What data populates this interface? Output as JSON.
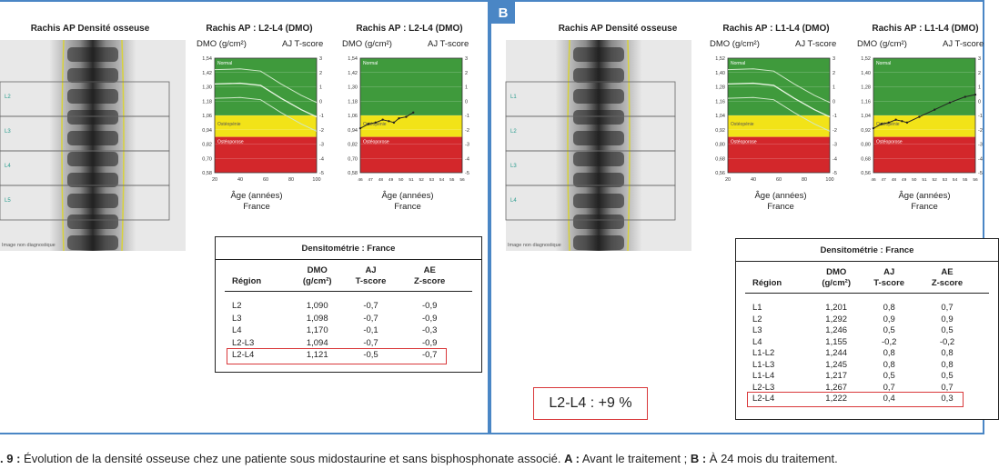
{
  "panel_a": {
    "letter": "",
    "xray_title": "Rachis AP Densité osseuse",
    "vertebra_labels": [
      "L2",
      "L3",
      "L4",
      "L5"
    ],
    "image_note": "Image non diagnostique",
    "graph_left": {
      "title": "Rachis AP : L2-L4 (DMO)",
      "y_label": "DMO (g/cm²)",
      "y2_label": "AJ T-score",
      "y_ticks": [
        "1,54",
        "1,42",
        "1,30",
        "1,18",
        "1,06",
        "0,94",
        "0,82",
        "0,70",
        "0,58"
      ],
      "t_ticks": [
        "3",
        "2",
        "1",
        "0",
        "-1",
        "-2",
        "-3",
        "-4",
        "-5"
      ],
      "x_ticks": [
        "20",
        "40",
        "60",
        "80",
        "100"
      ],
      "zones": [
        "Normal",
        "Ostéopénie",
        "Ostéoporose"
      ],
      "x_label": "Âge (années)",
      "x_sub": "France"
    },
    "graph_right": {
      "title": "Rachis AP : L2-L4 (DMO)",
      "y_label": "DMO (g/cm²)",
      "y2_label": "AJ T-score",
      "y_ticks": [
        "1,54",
        "1,42",
        "1,30",
        "1,18",
        "1,06",
        "0,94",
        "0,82",
        "0,70",
        "0,58"
      ],
      "t_ticks": [
        "3",
        "2",
        "1",
        "0",
        "-1",
        "-2",
        "-3",
        "-4",
        "-5"
      ],
      "x_ticks": [
        "46",
        "47",
        "48",
        "49",
        "50",
        "51",
        "52",
        "53",
        "54",
        "55",
        "56"
      ],
      "zones": [
        "Normal",
        "Ostéopénie",
        "Ostéoporose"
      ],
      "x_label": "Âge (années)",
      "x_sub": "France"
    },
    "table": {
      "title": "Densitométrie : France",
      "headers": {
        "region": "Région",
        "dmo": "DMO",
        "dmo_unit": "(g/cm²)",
        "aj": "AJ",
        "aj_sub": "T-score",
        "ae": "AE",
        "ae_sub": "Z-score"
      },
      "rows": [
        {
          "region": "L2",
          "dmo": "1,090",
          "t": "-0,7",
          "z": "-0,9"
        },
        {
          "region": "L3",
          "dmo": "1,098",
          "t": "-0,7",
          "z": "-0,9"
        },
        {
          "region": "L4",
          "dmo": "1,170",
          "t": "-0,1",
          "z": "-0,3"
        },
        {
          "region": "L2-L3",
          "dmo": "1,094",
          "t": "-0,7",
          "z": "-0,9"
        },
        {
          "region": "L2-L4",
          "dmo": "1,121",
          "t": "-0,5",
          "z": "-0,7"
        }
      ]
    }
  },
  "panel_b": {
    "letter": "B",
    "xray_title": "Rachis AP Densité osseuse",
    "vertebra_labels": [
      "L1",
      "L2",
      "L3",
      "L4"
    ],
    "image_note": "Image non diagnostique",
    "graph_left": {
      "title": "Rachis AP : L1-L4 (DMO)",
      "y_label": "DMO (g/cm²)",
      "y2_label": "AJ T-score",
      "y_ticks": [
        "1,52",
        "1,40",
        "1,28",
        "1,16",
        "1,04",
        "0,92",
        "0,80",
        "0,68",
        "0,56"
      ],
      "t_ticks": [
        "3",
        "2",
        "1",
        "0",
        "-1",
        "-2",
        "-3",
        "-4",
        "-5"
      ],
      "x_ticks": [
        "20",
        "40",
        "60",
        "80",
        "100"
      ],
      "zones": [
        "Normal",
        "Ostéopénie",
        "Ostéoporose"
      ],
      "x_label": "Âge (années)",
      "x_sub": "France"
    },
    "graph_right": {
      "title": "Rachis AP : L1-L4 (DMO)",
      "y_label": "DMO (g/cm²)",
      "y2_label": "AJ T-score",
      "y_ticks": [
        "1,52",
        "1,40",
        "1,28",
        "1,16",
        "1,04",
        "0,92",
        "0,80",
        "0,68",
        "0,56"
      ],
      "t_ticks": [
        "3",
        "2",
        "1",
        "0",
        "-1",
        "-2",
        "-3",
        "-4",
        "-5"
      ],
      "x_ticks": [
        "46",
        "47",
        "48",
        "49",
        "50",
        "51",
        "52",
        "53",
        "54",
        "55",
        "56"
      ],
      "zones": [
        "Normal",
        "Ostéopénie",
        "Ostéoporose"
      ],
      "x_label": "Âge (années)",
      "x_sub": "France"
    },
    "table": {
      "title": "Densitométrie : France",
      "headers": {
        "region": "Région",
        "dmo": "DMO",
        "dmo_unit": "(g/cm²)",
        "aj": "AJ",
        "aj_sub": "T-score",
        "ae": "AE",
        "ae_sub": "Z-score"
      },
      "rows": [
        {
          "region": "L1",
          "dmo": "1,201",
          "t": "0,8",
          "z": "0,7"
        },
        {
          "region": "L2",
          "dmo": "1,292",
          "t": "0,9",
          "z": "0,9"
        },
        {
          "region": "L3",
          "dmo": "1,246",
          "t": "0,5",
          "z": "0,5"
        },
        {
          "region": "L4",
          "dmo": "1,155",
          "t": "-0,2",
          "z": "-0,2"
        },
        {
          "region": "L1-L2",
          "dmo": "1,244",
          "t": "0,8",
          "z": "0,8"
        },
        {
          "region": "L1-L3",
          "dmo": "1,245",
          "t": "0,8",
          "z": "0,8"
        },
        {
          "region": "L1-L4",
          "dmo": "1,217",
          "t": "0,5",
          "z": "0,5"
        },
        {
          "region": "L2-L3",
          "dmo": "1,267",
          "t": "0,7",
          "z": "0,7"
        },
        {
          "region": "L2-L4",
          "dmo": "1,222",
          "t": "0,4",
          "z": "0,3"
        }
      ]
    },
    "result": "L2-L4 : +9 %"
  },
  "caption": {
    "prefix": ". 9 :",
    "text": " Évolution de la densité osseuse chez une patiente sous midostaurine et sans bisphosphonate associé. ",
    "a_label": "A :",
    "a_text": " Avant le traitement ; ",
    "b_label": "B :",
    "b_text": " À 24 mois du traitement."
  },
  "colors": {
    "panel_border": "#4a86c5",
    "normal": "#3f9a3c",
    "osteopenia": "#f2e318",
    "osteoporosis": "#d3272b",
    "highlight": "#d9383a"
  }
}
